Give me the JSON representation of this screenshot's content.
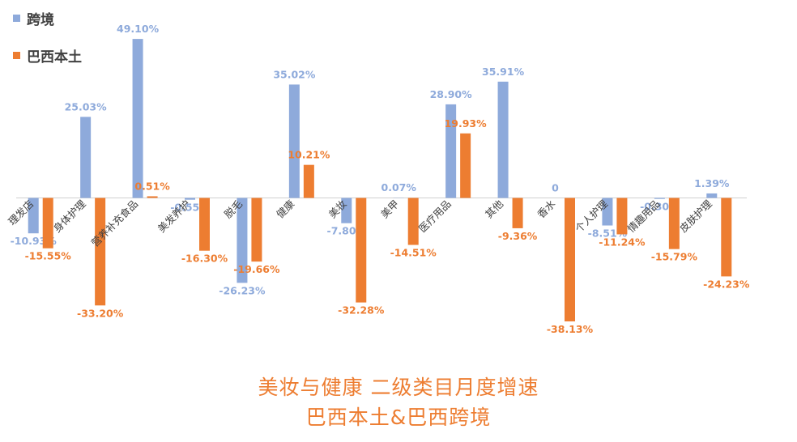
{
  "chart_data": {
    "type": "bar",
    "title": "美妆与健康 二级类目月度增速",
    "subtitle": "巴西本土&巴西跨境",
    "categories": [
      "理发店",
      "身体护理",
      "营养补充食品",
      "美发养护",
      "脱毛",
      "健康",
      "美妆",
      "美甲",
      "医疗用品",
      "其他",
      "香水",
      "个人护理",
      "情趣用品",
      "皮肤护理"
    ],
    "series": [
      {
        "name": "跨境",
        "color": "#8eaadb",
        "values": [
          -10.93,
          25.03,
          49.1,
          -0.55,
          -26.23,
          35.02,
          -7.8,
          0.07,
          28.9,
          35.91,
          0,
          -8.51,
          -0.3,
          1.39
        ],
        "labels": [
          "-10.93%",
          "25.03%",
          "49.10%",
          "-0.55%",
          "-26.23%",
          "35.02%",
          "-7.80%",
          "0.07%",
          "28.90%",
          "35.91%",
          "0",
          "-8.51%",
          "-0.30%",
          "1.39%"
        ]
      },
      {
        "name": "巴西本土",
        "color": "#ed7d31",
        "values": [
          -15.55,
          -33.2,
          0.51,
          -16.3,
          -19.66,
          10.21,
          -32.28,
          -14.51,
          19.93,
          -9.36,
          -38.13,
          -11.24,
          -15.79,
          -24.23
        ],
        "labels": [
          "-15.55%",
          "-33.20%",
          "0.51%",
          "-16.30%",
          "-19.66%",
          "10.21%",
          "-32.28%",
          "-14.51%",
          "19.93%",
          "-9.36%",
          "-38.13%",
          "-11.24%",
          "-15.79%",
          "-24.23%"
        ]
      }
    ],
    "ylim": [
      -42,
      53
    ],
    "grid": false,
    "legend": "top-left"
  }
}
